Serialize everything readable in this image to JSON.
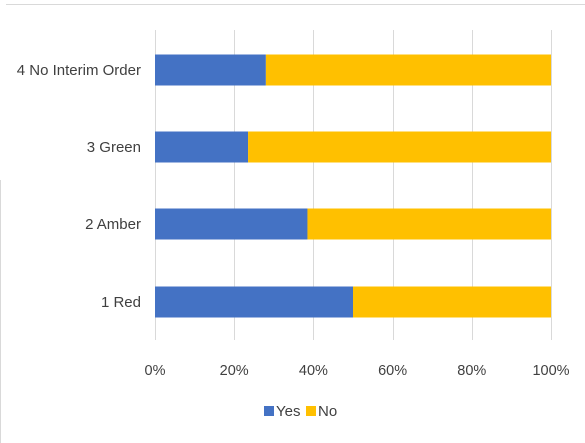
{
  "chart_data": {
    "type": "bar",
    "orientation": "horizontal",
    "stacked": "percent",
    "categories": [
      "4 No Interim Order",
      "3 Green",
      "2 Amber",
      "1 Red"
    ],
    "series": [
      {
        "name": "Yes",
        "color": "#4472c4",
        "values": [
          28,
          23.5,
          38.5,
          50
        ]
      },
      {
        "name": "No",
        "color": "#ffc000",
        "values": [
          72,
          76.5,
          61.5,
          50
        ]
      }
    ],
    "xlim": [
      0,
      100
    ],
    "xticks": [
      "0%",
      "20%",
      "40%",
      "60%",
      "80%",
      "100%"
    ],
    "grid": true,
    "legend": "bottom"
  }
}
